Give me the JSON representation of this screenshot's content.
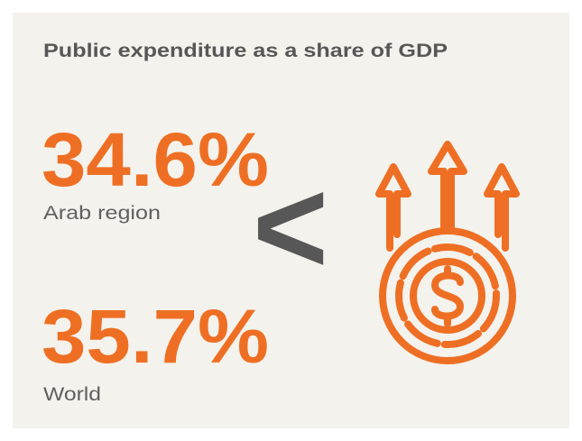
{
  "title": "Public expenditure as a share of GDP",
  "stats": [
    {
      "value": "34.6%",
      "label": "Arab region"
    },
    {
      "value": "35.7%",
      "label": "World"
    }
  ],
  "comparator": "<"
}
